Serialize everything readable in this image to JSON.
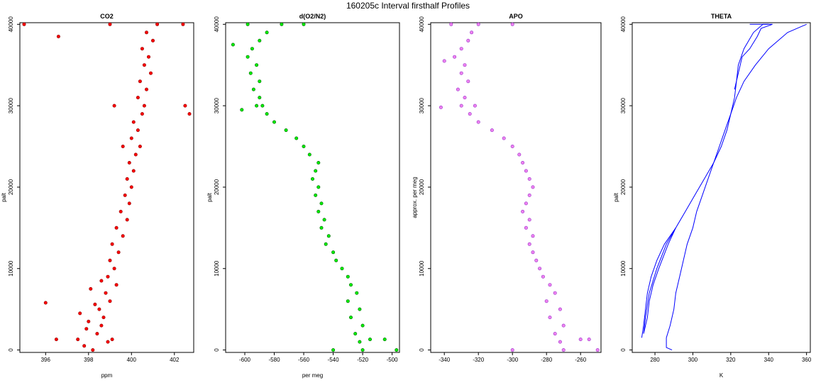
{
  "figure": {
    "title": "160205c   Interval firsthalf Profiles"
  },
  "chart_data": [
    {
      "type": "scatter",
      "title": "CO2",
      "xlabel": "ppm",
      "ylabel": "palt",
      "xlim": [
        394.8,
        402.9
      ],
      "ylim": [
        -300,
        40200
      ],
      "xticks": [
        396,
        398,
        400,
        402
      ],
      "yticks": [
        0,
        10000,
        20000,
        30000,
        40000
      ],
      "marker": "circle-open",
      "color": "#ff0000",
      "edge": "#8b0000",
      "series": [
        {
          "name": "",
          "points": [
            [
              398.2,
              0
            ],
            [
              397.8,
              500
            ],
            [
              398.9,
              1000
            ],
            [
              397.5,
              1300
            ],
            [
              399.1,
              1300
            ],
            [
              398.4,
              2000
            ],
            [
              397.9,
              2600
            ],
            [
              398.6,
              3000
            ],
            [
              398.0,
              3500
            ],
            [
              398.7,
              4000
            ],
            [
              397.6,
              4500
            ],
            [
              398.5,
              5000
            ],
            [
              398.3,
              5600
            ],
            [
              399.0,
              6000
            ],
            [
              398.8,
              7000
            ],
            [
              398.1,
              7500
            ],
            [
              399.3,
              8000
            ],
            [
              398.6,
              8500
            ],
            [
              398.9,
              9000
            ],
            [
              399.2,
              10000
            ],
            [
              399.0,
              11000
            ],
            [
              399.4,
              12000
            ],
            [
              399.1,
              13000
            ],
            [
              399.6,
              14000
            ],
            [
              399.3,
              15000
            ],
            [
              399.8,
              16000
            ],
            [
              399.5,
              17000
            ],
            [
              399.9,
              18000
            ],
            [
              399.7,
              19000
            ],
            [
              400.0,
              20000
            ],
            [
              399.8,
              21000
            ],
            [
              400.1,
              22000
            ],
            [
              399.9,
              23000
            ],
            [
              400.2,
              24000
            ],
            [
              399.6,
              25000
            ],
            [
              400.4,
              25000
            ],
            [
              400.0,
              26000
            ],
            [
              400.3,
              27000
            ],
            [
              400.1,
              28000
            ],
            [
              400.5,
              29000
            ],
            [
              399.2,
              30000
            ],
            [
              400.6,
              30000
            ],
            [
              400.3,
              31000
            ],
            [
              400.7,
              32000
            ],
            [
              400.4,
              33000
            ],
            [
              400.9,
              34000
            ],
            [
              400.6,
              35000
            ],
            [
              400.8,
              36000
            ],
            [
              400.5,
              37000
            ],
            [
              401.0,
              38000
            ],
            [
              400.7,
              39000
            ],
            [
              399.0,
              40000
            ],
            [
              401.2,
              40000
            ],
            [
              396.0,
              5800
            ],
            [
              396.5,
              1300
            ],
            [
              402.5,
              30000
            ],
            [
              402.7,
              29000
            ],
            [
              396.6,
              38500
            ],
            [
              395.0,
              40000
            ],
            [
              402.4,
              40000
            ]
          ]
        }
      ]
    },
    {
      "type": "scatter",
      "title": "d(O2/N2)",
      "xlabel": "per meg",
      "ylabel": "palt",
      "xlim": [
        -613,
        -495
      ],
      "ylim": [
        -300,
        40200
      ],
      "xticks": [
        -600,
        -580,
        -560,
        -540,
        -520,
        -500
      ],
      "yticks": [
        0,
        10000,
        20000,
        30000,
        40000
      ],
      "marker": "circle-filled",
      "color": "#00ee00",
      "edge": "#006400",
      "series": [
        {
          "name": "",
          "points": [
            [
              -520,
              0
            ],
            [
              -540,
              0
            ],
            [
              -522,
              1000
            ],
            [
              -515,
              1300
            ],
            [
              -525,
              2000
            ],
            [
              -520,
              3000
            ],
            [
              -528,
              4000
            ],
            [
              -522,
              5000
            ],
            [
              -530,
              6000
            ],
            [
              -524,
              7000
            ],
            [
              -528,
              8000
            ],
            [
              -530,
              9000
            ],
            [
              -534,
              10000
            ],
            [
              -538,
              11000
            ],
            [
              -540,
              12000
            ],
            [
              -545,
              13000
            ],
            [
              -543,
              14000
            ],
            [
              -548,
              15000
            ],
            [
              -546,
              16000
            ],
            [
              -550,
              17000
            ],
            [
              -548,
              18000
            ],
            [
              -552,
              19000
            ],
            [
              -550,
              20000
            ],
            [
              -554,
              21000
            ],
            [
              -552,
              22000
            ],
            [
              -550,
              23000
            ],
            [
              -556,
              24000
            ],
            [
              -560,
              25000
            ],
            [
              -565,
              26000
            ],
            [
              -572,
              27000
            ],
            [
              -580,
              28000
            ],
            [
              -585,
              29000
            ],
            [
              -592,
              30000
            ],
            [
              -588,
              30000
            ],
            [
              -590,
              31000
            ],
            [
              -594,
              32000
            ],
            [
              -590,
              33000
            ],
            [
              -596,
              34000
            ],
            [
              -592,
              35000
            ],
            [
              -598,
              36000
            ],
            [
              -595,
              37000
            ],
            [
              -590,
              38000
            ],
            [
              -585,
              39000
            ],
            [
              -575,
              40000
            ],
            [
              -598,
              40000
            ],
            [
              -560,
              40000
            ],
            [
              -608,
              37500
            ],
            [
              -602,
              29500
            ],
            [
              -505,
              1300
            ],
            [
              -497,
              0
            ]
          ]
        }
      ]
    },
    {
      "type": "scatter",
      "title": "APO",
      "xlabel": "",
      "ylabel": "approx. per meg",
      "xlim": [
        -348,
        -248
      ],
      "ylim": [
        -300,
        40200
      ],
      "xticks": [
        -340,
        -320,
        -300,
        -280,
        -260
      ],
      "yticks": [
        0,
        10000,
        20000,
        30000,
        40000
      ],
      "marker": "circle-filled",
      "color": "#ee82ee",
      "edge": "#9932cc",
      "series": [
        {
          "name": "",
          "points": [
            [
              -270,
              0
            ],
            [
              -300,
              0
            ],
            [
              -272,
              1000
            ],
            [
              -260,
              1300
            ],
            [
              -275,
              2000
            ],
            [
              -270,
              3000
            ],
            [
              -278,
              4000
            ],
            [
              -272,
              5000
            ],
            [
              -280,
              6000
            ],
            [
              -275,
              7000
            ],
            [
              -278,
              8000
            ],
            [
              -282,
              9000
            ],
            [
              -284,
              10000
            ],
            [
              -286,
              11000
            ],
            [
              -288,
              12000
            ],
            [
              -290,
              13000
            ],
            [
              -288,
              14000
            ],
            [
              -292,
              15000
            ],
            [
              -290,
              16000
            ],
            [
              -294,
              17000
            ],
            [
              -292,
              18000
            ],
            [
              -290,
              19000
            ],
            [
              -288,
              20000
            ],
            [
              -290,
              21000
            ],
            [
              -292,
              22000
            ],
            [
              -294,
              23000
            ],
            [
              -296,
              24000
            ],
            [
              -300,
              25000
            ],
            [
              -305,
              26000
            ],
            [
              -312,
              27000
            ],
            [
              -320,
              28000
            ],
            [
              -325,
              29000
            ],
            [
              -330,
              30000
            ],
            [
              -322,
              30000
            ],
            [
              -328,
              31000
            ],
            [
              -332,
              32000
            ],
            [
              -326,
              33000
            ],
            [
              -330,
              34000
            ],
            [
              -328,
              35000
            ],
            [
              -334,
              36000
            ],
            [
              -330,
              37000
            ],
            [
              -326,
              38000
            ],
            [
              -324,
              39000
            ],
            [
              -320,
              40000
            ],
            [
              -336,
              40000
            ],
            [
              -300,
              40000
            ],
            [
              -340,
              35500
            ],
            [
              -342,
              29800
            ],
            [
              -255,
              1300
            ],
            [
              -250,
              0
            ]
          ]
        }
      ]
    },
    {
      "type": "line",
      "title": "THETA",
      "xlabel": "K",
      "ylabel": "palt",
      "xlim": [
        268,
        362
      ],
      "ylim": [
        -300,
        40200
      ],
      "xticks": [
        280,
        300,
        320,
        340,
        360
      ],
      "yticks": [
        0,
        10000,
        20000,
        30000,
        40000
      ],
      "color": "#0000ff",
      "series": [
        {
          "name": "",
          "points": [
            [
              289,
              0
            ],
            [
              286,
              300
            ],
            [
              286,
              1500
            ],
            [
              288,
              3000
            ],
            [
              290,
              5000
            ],
            [
              291,
              7000
            ],
            [
              293,
              9000
            ],
            [
              295,
              11000
            ],
            [
              297,
              13000
            ],
            [
              300,
              15000
            ],
            [
              302,
              17000
            ],
            [
              305,
              19000
            ],
            [
              308,
              21000
            ],
            [
              311,
              23000
            ],
            [
              314,
              25000
            ],
            [
              317,
              27000
            ],
            [
              320,
              29000
            ],
            [
              323,
              31000
            ],
            [
              327,
              33000
            ],
            [
              333,
              35000
            ],
            [
              340,
              37000
            ],
            [
              350,
              39000
            ],
            [
              358,
              39800
            ],
            [
              360,
              40000
            ]
          ]
        },
        {
          "name": "",
          "points": [
            [
              273,
              1500
            ],
            [
              274,
              3000
            ],
            [
              275,
              5000
            ],
            [
              276,
              7000
            ],
            [
              278,
              9000
            ],
            [
              281,
              11000
            ],
            [
              285,
              13000
            ],
            [
              291,
              15000
            ],
            [
              296,
              17000
            ],
            [
              301,
              19000
            ],
            [
              306,
              21000
            ],
            [
              311,
              23000
            ],
            [
              315,
              25000
            ],
            [
              318,
              27000
            ],
            [
              320,
              29000
            ],
            [
              322,
              31000
            ],
            [
              323,
              33000
            ],
            [
              324,
              35000
            ],
            [
              327,
              37000
            ],
            [
              332,
              39000
            ],
            [
              337,
              40000
            ],
            [
              340,
              40000
            ]
          ]
        },
        {
          "name": "",
          "points": [
            [
              274,
              2000
            ],
            [
              276,
              4000
            ],
            [
              277,
              6000
            ],
            [
              279,
              8000
            ],
            [
              282,
              10000
            ],
            [
              287,
              13000
            ],
            [
              291,
              15000
            ],
            [
              286,
              13000
            ],
            [
              281,
              10000
            ],
            [
              277,
              7000
            ],
            [
              275,
              4000
            ],
            [
              274,
              2000
            ]
          ]
        },
        {
          "name": "",
          "points": [
            [
              330,
              40000
            ],
            [
              342,
              40000
            ],
            [
              336,
              39500
            ],
            [
              334,
              38500
            ],
            [
              330,
              37000
            ],
            [
              326,
              36000
            ],
            [
              324,
              34000
            ],
            [
              322,
              32000
            ]
          ]
        }
      ]
    }
  ]
}
